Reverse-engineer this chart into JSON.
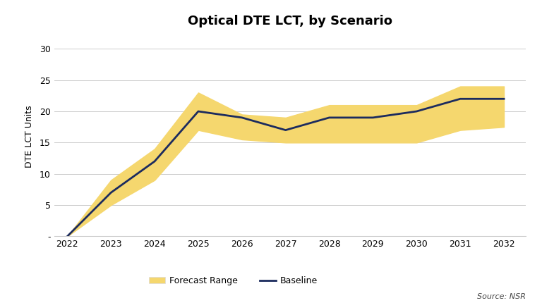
{
  "title": "Optical DTE LCT, by Scenario",
  "ylabel": "DTE LCT Units",
  "years": [
    2022,
    2023,
    2024,
    2025,
    2026,
    2027,
    2028,
    2029,
    2030,
    2031,
    2032
  ],
  "baseline": [
    0,
    7,
    12,
    20,
    19,
    17,
    19,
    19,
    20,
    22,
    22
  ],
  "upper": [
    0,
    9,
    14,
    23,
    19.5,
    19,
    21,
    21,
    21,
    24,
    24
  ],
  "lower": [
    0,
    5,
    9,
    17,
    15.5,
    15,
    15,
    15,
    15,
    17,
    17.5
  ],
  "ylim": [
    0,
    32
  ],
  "yticks": [
    0,
    5,
    10,
    15,
    20,
    25,
    30
  ],
  "ytick_labels": [
    "-",
    "5",
    "10",
    "15",
    "20",
    "25",
    "30"
  ],
  "fill_color": "#F5D76E",
  "fill_alpha": 1.0,
  "line_color": "#1C2B5E",
  "line_width": 2.0,
  "background_color": "#FFFFFF",
  "grid_color": "#CCCCCC",
  "source_text": "Source: NSR",
  "legend_forecast": "Forecast Range",
  "legend_baseline": "Baseline",
  "title_fontsize": 13,
  "axis_label_fontsize": 9,
  "tick_fontsize": 9
}
